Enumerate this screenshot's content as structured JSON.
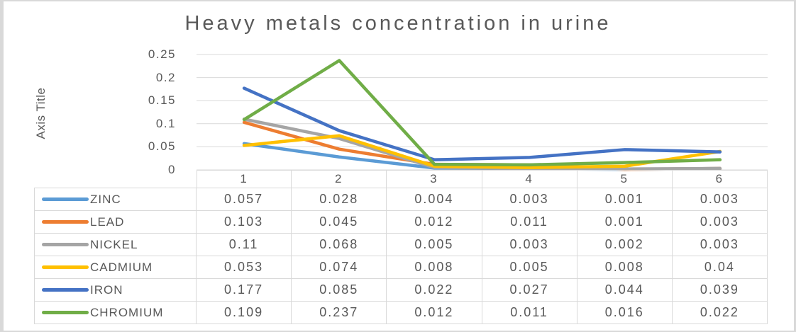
{
  "chart_data": {
    "type": "line",
    "title": "Heavy metals concentration in urine",
    "xlabel": "",
    "ylabel": "Axis Title",
    "categories": [
      "1",
      "2",
      "3",
      "4",
      "5",
      "6"
    ],
    "series": [
      {
        "name": "ZINC",
        "color": "#5B9BD5",
        "values": [
          0.057,
          0.028,
          0.004,
          0.003,
          0.001,
          0.003
        ]
      },
      {
        "name": "LEAD",
        "color": "#ED7D31",
        "values": [
          0.103,
          0.045,
          0.012,
          0.011,
          0.001,
          0.003
        ]
      },
      {
        "name": "NICKEL",
        "color": "#A5A5A5",
        "values": [
          0.11,
          0.068,
          0.005,
          0.003,
          0.002,
          0.003
        ]
      },
      {
        "name": "CADMIUM",
        "color": "#FFC000",
        "values": [
          0.053,
          0.074,
          0.008,
          0.005,
          0.008,
          0.04
        ]
      },
      {
        "name": "IRON",
        "color": "#4472C4",
        "values": [
          0.177,
          0.085,
          0.022,
          0.027,
          0.044,
          0.039
        ]
      },
      {
        "name": "CHROMIUM",
        "color": "#70AD47",
        "values": [
          0.109,
          0.237,
          0.012,
          0.011,
          0.016,
          0.022
        ]
      }
    ],
    "ylim": [
      0,
      0.25
    ],
    "yticks": [
      "0.25",
      "0.2",
      "0.15",
      "0.1",
      "0.05",
      "0"
    ],
    "grid": true,
    "legend_position": "data-table-left"
  },
  "axis": {
    "title": "Axis Title",
    "ticks": [
      "0.25",
      "0.2",
      "0.15",
      "0.1",
      "0.05",
      "0"
    ]
  },
  "table": {
    "columns": [
      "1",
      "2",
      "3",
      "4",
      "5",
      "6"
    ],
    "rows": [
      {
        "label": "ZINC",
        "values": [
          "0.057",
          "0.028",
          "0.004",
          "0.003",
          "0.001",
          "0.003"
        ]
      },
      {
        "label": "LEAD",
        "values": [
          "0.103",
          "0.045",
          "0.012",
          "0.011",
          "0.001",
          "0.003"
        ]
      },
      {
        "label": "NICKEL",
        "values": [
          "0.11",
          "0.068",
          "0.005",
          "0.003",
          "0.002",
          "0.003"
        ]
      },
      {
        "label": "CADMIUM",
        "values": [
          "0.053",
          "0.074",
          "0.008",
          "0.005",
          "0.008",
          "0.04"
        ]
      },
      {
        "label": "IRON",
        "values": [
          "0.177",
          "0.085",
          "0.022",
          "0.027",
          "0.044",
          "0.039"
        ]
      },
      {
        "label": "CHROMIUM",
        "values": [
          "0.109",
          "0.237",
          "0.012",
          "0.011",
          "0.016",
          "0.022"
        ]
      }
    ]
  }
}
